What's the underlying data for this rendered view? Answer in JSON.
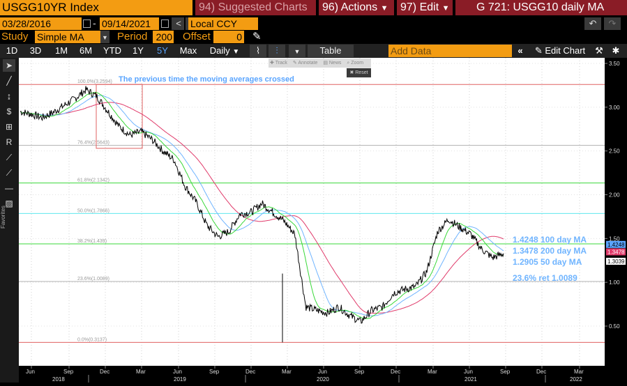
{
  "header": {
    "ticker": "USGG10YR Index",
    "suggested": {
      "code": "94)",
      "label": "Suggested Charts"
    },
    "actions": {
      "code": "96)",
      "label": "Actions"
    },
    "edit": {
      "code": "97)",
      "label": "Edit"
    },
    "chart_title": "G 721: USGG10 daily MA"
  },
  "date_range": {
    "start": "03/28/2016",
    "end": "09/14/2021",
    "currency": "Local CCY"
  },
  "study": {
    "label": "Study",
    "value": "Simple MA",
    "period_label": "Period",
    "period_value": "200",
    "offset_label": "Offset",
    "offset_value": "0"
  },
  "ranges": [
    "1D",
    "3D",
    "1M",
    "6M",
    "YTD",
    "1Y",
    "5Y",
    "Max"
  ],
  "selected_range": "5Y",
  "frequency": "Daily",
  "toolbar": {
    "table": "Table",
    "add_data": "Add Data",
    "edit_chart": "Edit Chart"
  },
  "mini_toolbar": [
    "Track",
    "Annotate",
    "News",
    "Zoom",
    "Reset"
  ],
  "left_tools": {
    "favorites": "Favorites"
  },
  "colors": {
    "orange": "#f39c12",
    "red_btn": "#8a1c26",
    "ma100": "#6fb4ff",
    "ma200": "#e03a6a",
    "ma50": "#39d839",
    "price": "#000000"
  },
  "chart_data": {
    "type": "line",
    "x_ticks": [
      "Jun",
      "Sep",
      "Dec",
      "Mar",
      "Jun",
      "Sep",
      "Dec",
      "Mar",
      "Jun",
      "Sep",
      "Dec",
      "Mar",
      "Jun",
      "Sep",
      "Dec",
      "Mar"
    ],
    "year_labels": [
      "2018",
      "2019",
      "2020",
      "2021",
      "2022"
    ],
    "y_ticks": [
      "3.50",
      "3.00",
      "2.50",
      "2.00",
      "1.50",
      "1.00",
      "0.50"
    ],
    "ylim": [
      0.2,
      3.55
    ],
    "series": [
      {
        "name": "USGG10YR",
        "values": [
          2.95,
          2.92,
          2.88,
          2.94,
          3.02,
          3.1,
          3.2,
          3.12,
          2.95,
          2.78,
          2.68,
          2.72,
          2.63,
          2.5,
          2.4,
          2.1,
          1.92,
          1.65,
          1.52,
          1.58,
          1.78,
          1.8,
          1.9,
          1.8,
          1.7,
          1.55,
          0.72,
          0.68,
          0.65,
          0.72,
          0.62,
          0.55,
          0.68,
          0.72,
          0.88,
          0.92,
          0.95,
          1.12,
          1.58,
          1.72,
          1.63,
          1.55,
          1.38,
          1.28,
          1.33
        ]
      },
      {
        "name": "100 day MA",
        "label": "1.4248 100 day MA",
        "last": 1.4248
      },
      {
        "name": "200 day MA",
        "label": "1.3478 200 day MA",
        "last": 1.3478
      },
      {
        "name": "50 day MA",
        "label": "1.2905 50 day MA",
        "last": 1.2905
      }
    ],
    "fib_levels": [
      {
        "label": "100.0%(3.2594)",
        "value": 3.2594
      },
      {
        "label": "76.4%(2.5643)",
        "value": 2.5643
      },
      {
        "label": "61.8%(2.1342)",
        "value": 2.1342
      },
      {
        "label": "50.0%(1.7866)",
        "value": 1.7866
      },
      {
        "label": "38.2%(1.439)",
        "value": 1.439
      },
      {
        "label": "23.6%(1.0089)",
        "value": 1.0089
      },
      {
        "label": "0.0%(0.3137)",
        "value": 0.3137
      }
    ],
    "annotations": [
      "The previous time the moving averages crossed",
      "23.6% ret 1.0089"
    ],
    "last_price_tags": [
      "1.4248",
      "1.3478",
      "1.3039"
    ]
  }
}
